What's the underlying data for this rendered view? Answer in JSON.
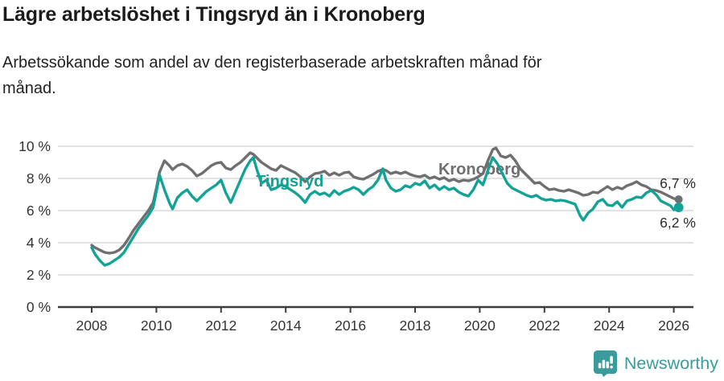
{
  "header": {
    "title": "Lägre arbetslöshet i Tingsryd än i Kronoberg",
    "subtitle_line1": "Arbetssökande som andel av den registerbaserade arbetskraften månad för",
    "subtitle_line2": "månad."
  },
  "footer": {
    "brand": "Newsworthy",
    "logo_icon": "newsworthy-speech-bubble-barchart-icon",
    "brand_color": "#3a9b9c"
  },
  "colors": {
    "tingsryd": "#12a296",
    "kronoberg": "#6f6f6f",
    "grid": "#d9d9d9",
    "axis": "#3d3d3d",
    "text": "#2b2b2b"
  },
  "chart_data": {
    "type": "line",
    "title": "",
    "xlabel": "",
    "ylabel": "",
    "x_unit": "year (monthly data)",
    "xlim": [
      2007.85,
      2026.6
    ],
    "ylim": [
      0,
      10
    ],
    "grid": "horizontal",
    "y_ticks": [
      {
        "value": 0,
        "label": "0 %"
      },
      {
        "value": 2,
        "label": "2 %"
      },
      {
        "value": 4,
        "label": "4 %"
      },
      {
        "value": 6,
        "label": "6 %"
      },
      {
        "value": 8,
        "label": "8 %"
      },
      {
        "value": 10,
        "label": "10 %"
      }
    ],
    "x_ticks": [
      2008,
      2010,
      2012,
      2014,
      2016,
      2018,
      2020,
      2022,
      2024,
      2026
    ],
    "series": [
      {
        "name": "Tingsryd",
        "color": "#12a296",
        "end_label": "6,2 %",
        "end_dot_radius": 6,
        "name_label_pos": {
          "x": 2013.08,
          "y": 7.5
        },
        "points": [
          [
            2008.0,
            3.7
          ],
          [
            2008.1,
            3.3
          ],
          [
            2008.25,
            2.9
          ],
          [
            2008.4,
            2.6
          ],
          [
            2008.55,
            2.7
          ],
          [
            2008.7,
            2.9
          ],
          [
            2008.85,
            3.1
          ],
          [
            2009.0,
            3.4
          ],
          [
            2009.15,
            3.9
          ],
          [
            2009.3,
            4.4
          ],
          [
            2009.45,
            4.9
          ],
          [
            2009.6,
            5.3
          ],
          [
            2009.75,
            5.7
          ],
          [
            2009.9,
            6.2
          ],
          [
            2010.0,
            7.2
          ],
          [
            2010.1,
            8.2
          ],
          [
            2010.25,
            7.3
          ],
          [
            2010.4,
            6.5
          ],
          [
            2010.5,
            6.1
          ],
          [
            2010.65,
            6.8
          ],
          [
            2010.8,
            7.1
          ],
          [
            2010.95,
            7.3
          ],
          [
            2011.1,
            6.9
          ],
          [
            2011.25,
            6.6
          ],
          [
            2011.4,
            6.9
          ],
          [
            2011.55,
            7.2
          ],
          [
            2011.7,
            7.4
          ],
          [
            2011.85,
            7.6
          ],
          [
            2012.0,
            7.9
          ],
          [
            2012.15,
            7.1
          ],
          [
            2012.3,
            6.5
          ],
          [
            2012.45,
            7.2
          ],
          [
            2012.6,
            7.9
          ],
          [
            2012.75,
            8.6
          ],
          [
            2012.9,
            9.1
          ],
          [
            2013.0,
            9.3
          ],
          [
            2013.1,
            8.6
          ],
          [
            2013.25,
            7.7
          ],
          [
            2013.4,
            7.9
          ],
          [
            2013.55,
            7.3
          ],
          [
            2013.7,
            7.4
          ],
          [
            2013.85,
            7.6
          ],
          [
            2014.0,
            7.5
          ],
          [
            2014.15,
            7.3
          ],
          [
            2014.3,
            7.1
          ],
          [
            2014.45,
            6.85
          ],
          [
            2014.6,
            6.5
          ],
          [
            2014.75,
            7.0
          ],
          [
            2014.9,
            7.2
          ],
          [
            2015.05,
            7.0
          ],
          [
            2015.2,
            7.1
          ],
          [
            2015.35,
            6.9
          ],
          [
            2015.5,
            7.25
          ],
          [
            2015.65,
            7.0
          ],
          [
            2015.8,
            7.2
          ],
          [
            2015.95,
            7.3
          ],
          [
            2016.1,
            7.45
          ],
          [
            2016.25,
            7.3
          ],
          [
            2016.4,
            7.0
          ],
          [
            2016.55,
            7.3
          ],
          [
            2016.7,
            7.5
          ],
          [
            2016.85,
            7.9
          ],
          [
            2017.0,
            8.6
          ],
          [
            2017.1,
            7.9
          ],
          [
            2017.25,
            7.4
          ],
          [
            2017.4,
            7.2
          ],
          [
            2017.55,
            7.3
          ],
          [
            2017.7,
            7.55
          ],
          [
            2017.85,
            7.45
          ],
          [
            2018.0,
            7.7
          ],
          [
            2018.15,
            7.6
          ],
          [
            2018.3,
            7.85
          ],
          [
            2018.45,
            7.4
          ],
          [
            2018.6,
            7.6
          ],
          [
            2018.75,
            7.3
          ],
          [
            2018.9,
            7.5
          ],
          [
            2019.05,
            7.3
          ],
          [
            2019.2,
            7.4
          ],
          [
            2019.35,
            7.15
          ],
          [
            2019.5,
            7.0
          ],
          [
            2019.65,
            6.9
          ],
          [
            2019.8,
            7.3
          ],
          [
            2019.95,
            7.9
          ],
          [
            2020.1,
            7.6
          ],
          [
            2020.25,
            8.5
          ],
          [
            2020.4,
            9.3
          ],
          [
            2020.55,
            8.9
          ],
          [
            2020.7,
            8.3
          ],
          [
            2020.85,
            7.7
          ],
          [
            2021.0,
            7.4
          ],
          [
            2021.15,
            7.25
          ],
          [
            2021.3,
            7.1
          ],
          [
            2021.45,
            6.95
          ],
          [
            2021.6,
            6.85
          ],
          [
            2021.75,
            6.95
          ],
          [
            2021.9,
            6.75
          ],
          [
            2022.05,
            6.65
          ],
          [
            2022.2,
            6.7
          ],
          [
            2022.35,
            6.6
          ],
          [
            2022.5,
            6.65
          ],
          [
            2022.65,
            6.6
          ],
          [
            2022.8,
            6.5
          ],
          [
            2022.95,
            6.4
          ],
          [
            2023.1,
            5.7
          ],
          [
            2023.2,
            5.4
          ],
          [
            2023.35,
            5.85
          ],
          [
            2023.5,
            6.1
          ],
          [
            2023.65,
            6.55
          ],
          [
            2023.8,
            6.7
          ],
          [
            2023.95,
            6.35
          ],
          [
            2024.1,
            6.3
          ],
          [
            2024.25,
            6.55
          ],
          [
            2024.4,
            6.2
          ],
          [
            2024.55,
            6.6
          ],
          [
            2024.7,
            6.7
          ],
          [
            2024.85,
            6.85
          ],
          [
            2025.0,
            6.8
          ],
          [
            2025.15,
            7.1
          ],
          [
            2025.3,
            7.25
          ],
          [
            2025.45,
            7.0
          ],
          [
            2025.6,
            6.6
          ],
          [
            2025.75,
            6.45
          ],
          [
            2025.9,
            6.3
          ],
          [
            2026.0,
            6.05
          ],
          [
            2026.15,
            6.2
          ]
        ]
      },
      {
        "name": "Kronoberg",
        "color": "#6f6f6f",
        "end_label": "6,7 %",
        "end_dot_radius": 5,
        "name_label_pos": {
          "x": 2018.72,
          "y": 8.25
        },
        "points": [
          [
            2008.0,
            3.85
          ],
          [
            2008.1,
            3.7
          ],
          [
            2008.25,
            3.55
          ],
          [
            2008.4,
            3.4
          ],
          [
            2008.55,
            3.35
          ],
          [
            2008.7,
            3.4
          ],
          [
            2008.85,
            3.55
          ],
          [
            2009.0,
            3.85
          ],
          [
            2009.15,
            4.3
          ],
          [
            2009.3,
            4.8
          ],
          [
            2009.45,
            5.2
          ],
          [
            2009.6,
            5.6
          ],
          [
            2009.75,
            6.0
          ],
          [
            2009.9,
            6.5
          ],
          [
            2010.0,
            7.4
          ],
          [
            2010.1,
            8.4
          ],
          [
            2010.25,
            9.1
          ],
          [
            2010.4,
            8.8
          ],
          [
            2010.5,
            8.55
          ],
          [
            2010.65,
            8.8
          ],
          [
            2010.8,
            8.9
          ],
          [
            2010.95,
            8.75
          ],
          [
            2011.1,
            8.5
          ],
          [
            2011.25,
            8.15
          ],
          [
            2011.4,
            8.3
          ],
          [
            2011.55,
            8.55
          ],
          [
            2011.7,
            8.8
          ],
          [
            2011.85,
            8.95
          ],
          [
            2012.0,
            9.0
          ],
          [
            2012.15,
            8.65
          ],
          [
            2012.3,
            8.55
          ],
          [
            2012.45,
            8.8
          ],
          [
            2012.6,
            9.0
          ],
          [
            2012.75,
            9.3
          ],
          [
            2012.9,
            9.6
          ],
          [
            2013.0,
            9.5
          ],
          [
            2013.1,
            9.3
          ],
          [
            2013.25,
            9.0
          ],
          [
            2013.4,
            8.8
          ],
          [
            2013.55,
            8.6
          ],
          [
            2013.7,
            8.5
          ],
          [
            2013.85,
            8.8
          ],
          [
            2014.0,
            8.65
          ],
          [
            2014.15,
            8.5
          ],
          [
            2014.3,
            8.35
          ],
          [
            2014.45,
            8.1
          ],
          [
            2014.6,
            7.8
          ],
          [
            2014.75,
            8.1
          ],
          [
            2014.9,
            8.3
          ],
          [
            2015.05,
            8.35
          ],
          [
            2015.2,
            8.45
          ],
          [
            2015.35,
            8.2
          ],
          [
            2015.5,
            8.35
          ],
          [
            2015.65,
            8.2
          ],
          [
            2015.8,
            8.35
          ],
          [
            2015.95,
            8.4
          ],
          [
            2016.1,
            8.1
          ],
          [
            2016.25,
            8.0
          ],
          [
            2016.4,
            7.95
          ],
          [
            2016.55,
            8.1
          ],
          [
            2016.7,
            8.25
          ],
          [
            2016.85,
            8.45
          ],
          [
            2017.0,
            8.55
          ],
          [
            2017.1,
            8.5
          ],
          [
            2017.25,
            8.3
          ],
          [
            2017.4,
            8.4
          ],
          [
            2017.55,
            8.3
          ],
          [
            2017.7,
            8.4
          ],
          [
            2017.85,
            8.25
          ],
          [
            2018.0,
            8.15
          ],
          [
            2018.15,
            8.1
          ],
          [
            2018.3,
            8.2
          ],
          [
            2018.45,
            8.0
          ],
          [
            2018.6,
            8.1
          ],
          [
            2018.75,
            7.95
          ],
          [
            2018.9,
            8.05
          ],
          [
            2019.05,
            7.85
          ],
          [
            2019.2,
            7.95
          ],
          [
            2019.35,
            7.8
          ],
          [
            2019.5,
            7.9
          ],
          [
            2019.65,
            7.85
          ],
          [
            2019.8,
            7.95
          ],
          [
            2019.95,
            8.1
          ],
          [
            2020.1,
            8.3
          ],
          [
            2020.25,
            9.1
          ],
          [
            2020.4,
            9.8
          ],
          [
            2020.5,
            9.9
          ],
          [
            2020.65,
            9.4
          ],
          [
            2020.8,
            9.3
          ],
          [
            2020.95,
            9.45
          ],
          [
            2021.1,
            9.1
          ],
          [
            2021.25,
            8.6
          ],
          [
            2021.4,
            8.3
          ],
          [
            2021.55,
            8.0
          ],
          [
            2021.7,
            7.7
          ],
          [
            2021.85,
            7.75
          ],
          [
            2022.0,
            7.5
          ],
          [
            2022.15,
            7.3
          ],
          [
            2022.3,
            7.35
          ],
          [
            2022.45,
            7.25
          ],
          [
            2022.6,
            7.2
          ],
          [
            2022.75,
            7.3
          ],
          [
            2022.9,
            7.2
          ],
          [
            2023.05,
            7.1
          ],
          [
            2023.2,
            6.95
          ],
          [
            2023.35,
            7.0
          ],
          [
            2023.5,
            7.15
          ],
          [
            2023.65,
            7.1
          ],
          [
            2023.8,
            7.3
          ],
          [
            2023.95,
            7.5
          ],
          [
            2024.1,
            7.3
          ],
          [
            2024.25,
            7.45
          ],
          [
            2024.4,
            7.35
          ],
          [
            2024.55,
            7.55
          ],
          [
            2024.7,
            7.65
          ],
          [
            2024.85,
            7.8
          ],
          [
            2025.0,
            7.6
          ],
          [
            2025.15,
            7.5
          ],
          [
            2025.3,
            7.3
          ],
          [
            2025.45,
            7.25
          ],
          [
            2025.6,
            7.15
          ],
          [
            2025.75,
            7.0
          ],
          [
            2025.9,
            6.85
          ],
          [
            2026.0,
            6.75
          ],
          [
            2026.15,
            6.7
          ]
        ]
      }
    ]
  }
}
